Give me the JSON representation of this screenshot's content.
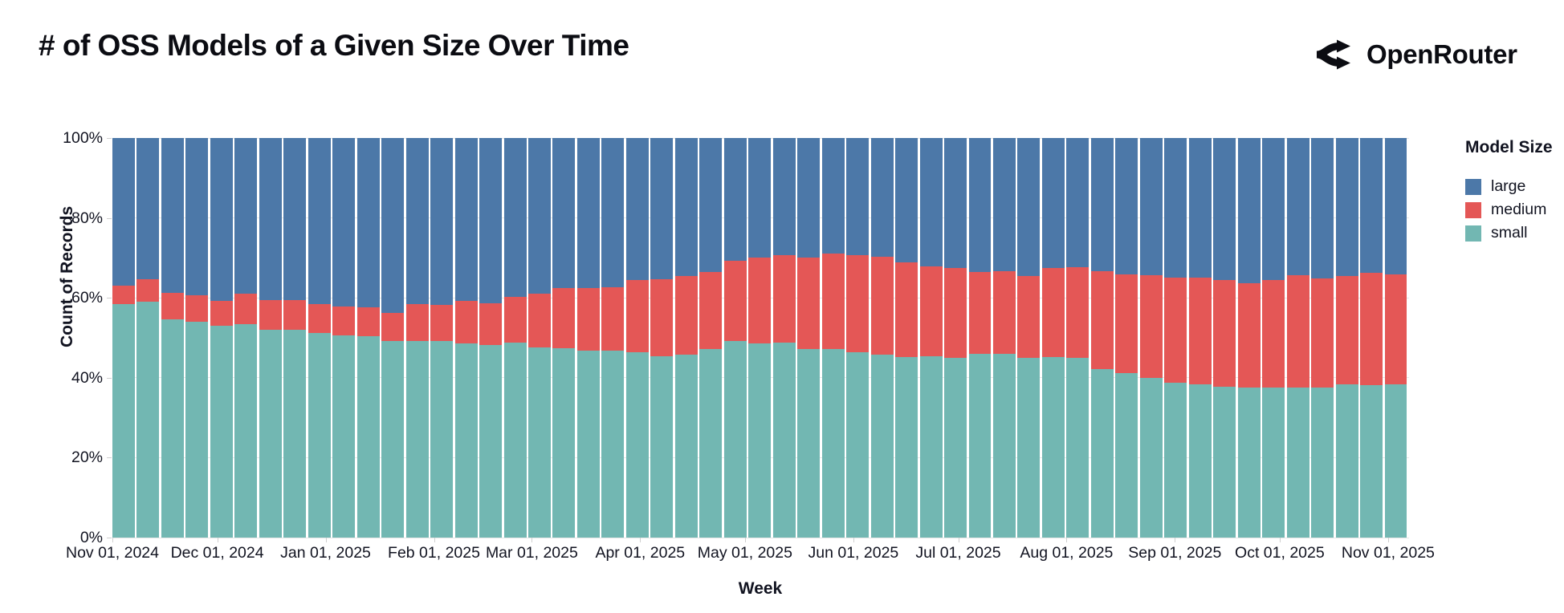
{
  "header": {
    "title": "# of OSS Models of a Given Size Over Time",
    "brand": "OpenRouter"
  },
  "chart_data": {
    "type": "bar",
    "stacked": "normalize",
    "title": "# of OSS Models of a Given Size Over Time",
    "xlabel": "Week",
    "ylabel": "Count of Records",
    "ylim": [
      0,
      100
    ],
    "y_ticks": [
      "0%",
      "20%",
      "40%",
      "60%",
      "80%",
      "100%"
    ],
    "grid": true,
    "legend_title": "Model Size",
    "legend_position": "right",
    "colors": {
      "large": "#4c78a8",
      "medium": "#e45756",
      "small": "#72b7b2"
    },
    "stack_order_bottom_to_top": [
      "small",
      "medium",
      "large"
    ],
    "categories": [
      "Oct 27, 2024",
      "Nov 03, 2024",
      "Nov 10, 2024",
      "Nov 17, 2024",
      "Nov 24, 2024",
      "Dec 01, 2024",
      "Dec 08, 2024",
      "Dec 15, 2024",
      "Dec 22, 2024",
      "Dec 29, 2024",
      "Jan 05, 2025",
      "Jan 12, 2025",
      "Jan 19, 2025",
      "Jan 26, 2025",
      "Feb 02, 2025",
      "Feb 09, 2025",
      "Feb 16, 2025",
      "Feb 23, 2025",
      "Mar 02, 2025",
      "Mar 09, 2025",
      "Mar 16, 2025",
      "Mar 23, 2025",
      "Mar 30, 2025",
      "Apr 06, 2025",
      "Apr 13, 2025",
      "Apr 20, 2025",
      "Apr 27, 2025",
      "May 04, 2025",
      "May 11, 2025",
      "May 18, 2025",
      "May 25, 2025",
      "Jun 01, 2025",
      "Jun 08, 2025",
      "Jun 15, 2025",
      "Jun 22, 2025",
      "Jun 29, 2025",
      "Jul 06, 2025",
      "Jul 13, 2025",
      "Jul 20, 2025",
      "Jul 27, 2025",
      "Aug 03, 2025",
      "Aug 10, 2025",
      "Aug 17, 2025",
      "Aug 24, 2025",
      "Aug 31, 2025",
      "Sep 07, 2025",
      "Sep 14, 2025",
      "Sep 21, 2025",
      "Sep 28, 2025",
      "Oct 05, 2025",
      "Oct 12, 2025",
      "Oct 19, 2025",
      "Oct 26, 2025"
    ],
    "series": [
      {
        "name": "small",
        "values": [
          58.5,
          59,
          54.7,
          54,
          53,
          53.5,
          52,
          52,
          51.3,
          50.6,
          50.4,
          49.3,
          49.1,
          49.1,
          48.6,
          48.1,
          48.8,
          47.6,
          47.3,
          46.8,
          46.8,
          46.3,
          45.3,
          45.7,
          47.1,
          49.1,
          48.6,
          48.8,
          47.1,
          47.1,
          46.4,
          45.7,
          45.1,
          45.4,
          44.9,
          45.9,
          45.9,
          44.9,
          45.1,
          45,
          42.1,
          41.2,
          40,
          38.7,
          38.4,
          37.7,
          37.6,
          37.6,
          37.6,
          37.6,
          38.4,
          38.2,
          38.4
        ]
      },
      {
        "name": "medium",
        "values": [
          4.5,
          5.7,
          6.5,
          6.7,
          6.2,
          7.5,
          7.4,
          7.4,
          7.2,
          7.2,
          7.3,
          6.9,
          9.4,
          9.2,
          10.6,
          10.6,
          11.4,
          13.4,
          15.2,
          15.6,
          15.9,
          18.2,
          19.4,
          19.7,
          19.4,
          20.1,
          21.5,
          21.8,
          23,
          23.9,
          24.2,
          24.6,
          23.8,
          22.5,
          22.5,
          20.6,
          20.7,
          20.6,
          22.3,
          22.7,
          24.5,
          24.7,
          25.7,
          26.4,
          26.7,
          26.7,
          26.1,
          26.8,
          28.1,
          27.3,
          27,
          28.1,
          27.5
        ]
      },
      {
        "name": "large",
        "values": [
          37,
          35.3,
          38.8,
          39.3,
          40.8,
          39,
          40.6,
          40.6,
          41.5,
          42.2,
          42.3,
          43.8,
          41.5,
          41.7,
          40.8,
          41.3,
          39.8,
          39,
          37.5,
          37.6,
          37.3,
          35.5,
          35.3,
          34.6,
          33.5,
          30.8,
          29.9,
          29.4,
          29.9,
          29,
          29.4,
          29.7,
          31.1,
          32.1,
          32.6,
          33.5,
          33.4,
          34.5,
          32.6,
          32.3,
          33.4,
          34.1,
          34.3,
          34.9,
          34.9,
          35.6,
          36.3,
          35.6,
          34.3,
          35.1,
          34.6,
          33.7,
          34.1
        ]
      }
    ],
    "legend_entries": [
      "large",
      "medium",
      "small"
    ],
    "x_month_ticks": [
      {
        "label": "Nov 01, 2024",
        "day": 0
      },
      {
        "label": "Dec 01, 2024",
        "day": 30
      },
      {
        "label": "Jan 01, 2025",
        "day": 61
      },
      {
        "label": "Feb 01, 2025",
        "day": 92
      },
      {
        "label": "Mar 01, 2025",
        "day": 120
      },
      {
        "label": "Apr 01, 2025",
        "day": 151
      },
      {
        "label": "May 01, 2025",
        "day": 181
      },
      {
        "label": "Jun 01, 2025",
        "day": 212
      },
      {
        "label": "Jul 01, 2025",
        "day": 242
      },
      {
        "label": "Aug 01, 2025",
        "day": 273
      },
      {
        "label": "Sep 01, 2025",
        "day": 304
      },
      {
        "label": "Oct 01, 2025",
        "day": 334
      },
      {
        "label": "Nov 01, 2025",
        "day": 365
      }
    ],
    "x_span_days": 371
  }
}
